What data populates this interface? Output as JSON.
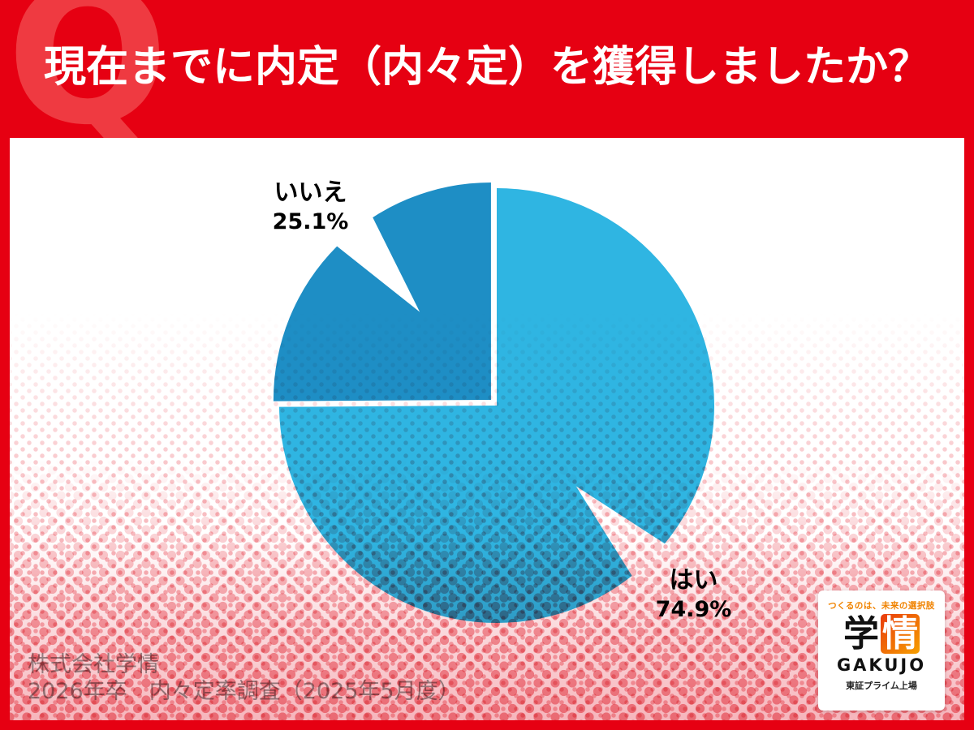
{
  "header": {
    "q_letter": "Q",
    "title": "現在までに内定（内々定）を獲得しましたか？"
  },
  "chart_data": {
    "type": "pie",
    "title": "現在までに内定（内々定）を獲得しましたか？",
    "unit": "%",
    "start_angle_deg": 0,
    "direction": "clockwise",
    "slices": [
      {
        "id": "yes",
        "label": "はい",
        "value": 74.9,
        "color": "#2fb5e2",
        "explode": false,
        "notch_angle_deg": 135.5
      },
      {
        "id": "no",
        "label": "いいえ",
        "value": 25.1,
        "color": "#1e8ec5",
        "explode": true,
        "notch_angle_deg": 321
      }
    ]
  },
  "callouts": {
    "no": {
      "label": "いいえ",
      "value": "25.1%"
    },
    "yes": {
      "label": "はい",
      "value": "74.9%"
    }
  },
  "source": {
    "line1": "株式会社学情",
    "line2": "2026年卒　内々定率調査（2025年5月度）"
  },
  "logo": {
    "tagline": "つくるのは、未来の選択肢",
    "kanji_first": "学",
    "kanji_second": "情",
    "name_latin": "GAKUJO",
    "listing": "東証プライム上場"
  },
  "colors": {
    "background_red": "#e60012",
    "q_watermark": "#ef3a41",
    "card_white": "#ffffff",
    "slice_yes": "#2fb5e2",
    "slice_no": "#1e8ec5",
    "source_gray": "#999999",
    "logo_orange": "#f08300"
  }
}
